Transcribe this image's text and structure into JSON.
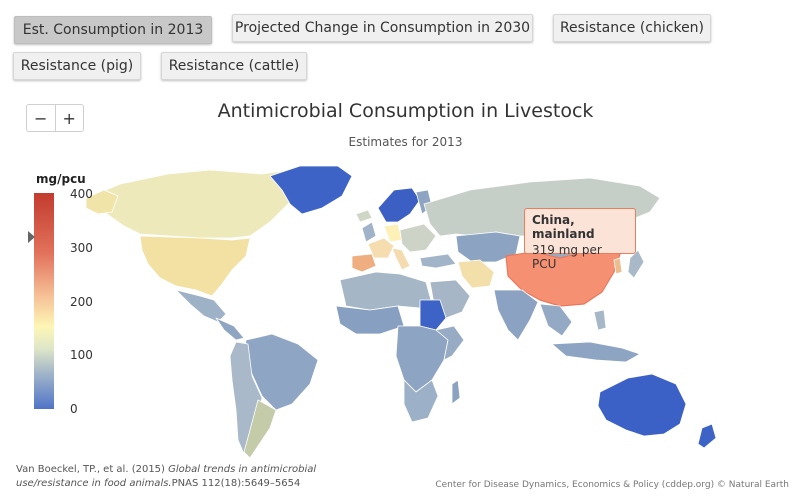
{
  "tabs": [
    {
      "label": "Est. Consumption in 2013",
      "active": true
    },
    {
      "label": "Projected Change in Consumption in 2030",
      "active": false
    },
    {
      "label": "Resistance (chicken)",
      "active": false
    },
    {
      "label": "Resistance (pig)",
      "active": false
    },
    {
      "label": "Resistance (cattle)",
      "active": false
    }
  ],
  "zoom": {
    "out_label": "−",
    "in_label": "+"
  },
  "map": {
    "title": "Antimicrobial Consumption in Livestock",
    "subtitle": "Estimates for 2013"
  },
  "legend": {
    "title": "mg/pcu",
    "ticks": [
      "400",
      "300",
      "200",
      "100",
      "0"
    ]
  },
  "tooltip": {
    "country": "China, mainland",
    "value_text": "319 mg per PCU"
  },
  "citation": {
    "prefix": "Van Boeckel, TP., et al. (2015) ",
    "title": "Global trends in antimicrobial",
    "title_cont": "use/resistance in food animals.",
    "journal": "PNAS 112(18):5649–5654"
  },
  "credits": "Center for Disease Dynamics, Economics & Policy (cddep.org) © Natural Earth",
  "colors": {
    "high": "#c23b2f",
    "mid_high": "#f69072",
    "mid": "#fdf0b0",
    "low_mid": "#9fb3c8",
    "low": "#4f74c8"
  }
}
